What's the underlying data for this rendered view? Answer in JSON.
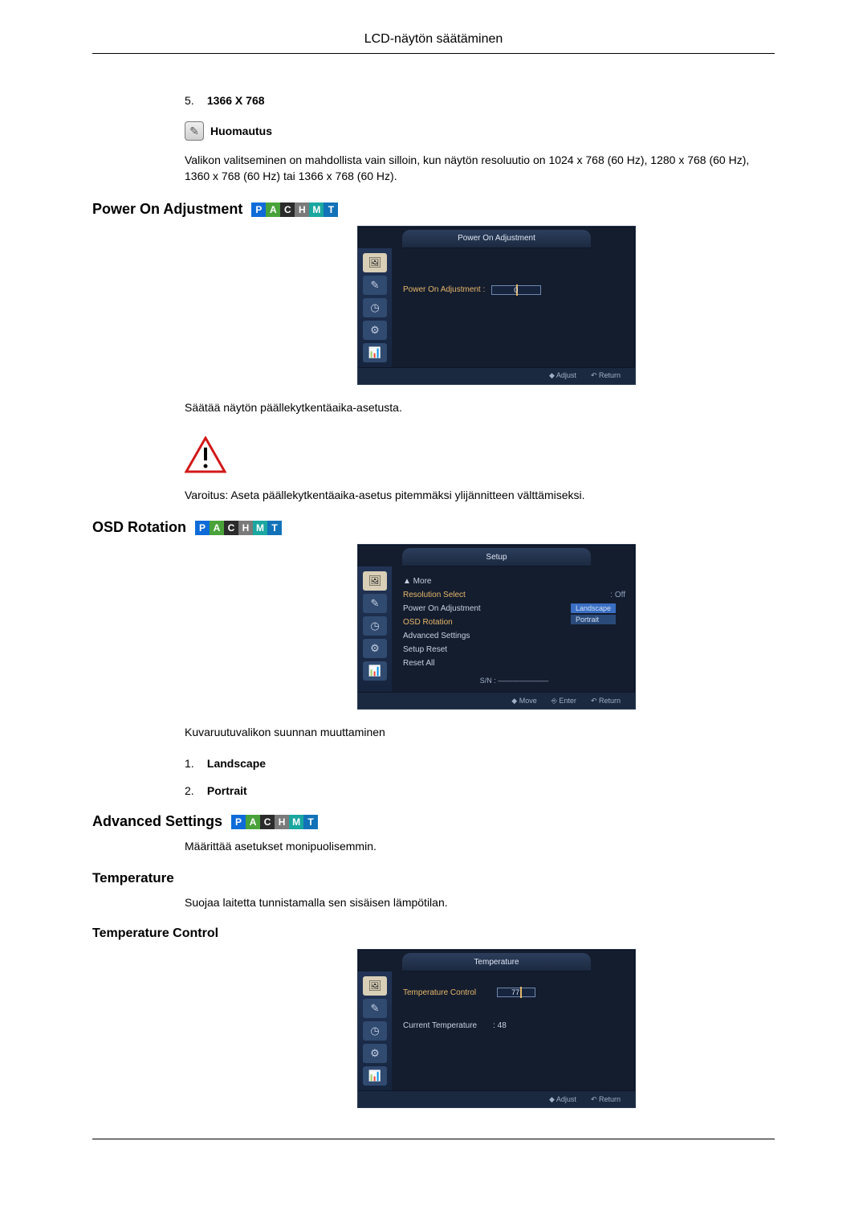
{
  "header": {
    "title": "LCD-näytön säätäminen"
  },
  "item5": {
    "num": "5.",
    "label": "1366 X 768"
  },
  "note": {
    "label": "Huomautus"
  },
  "para1": "Valikon valitseminen on mahdollista vain silloin, kun näytön resoluutio on 1024 x 768 (60 Hz), 1280 x 768 (60 Hz), 1360 x 768 (60 Hz) tai 1366 x 768 (60 Hz).",
  "pachmt": {
    "letters": [
      "P",
      "A",
      "C",
      "H",
      "M",
      "T"
    ],
    "colors": [
      "#0f6bd8",
      "#4aa33a",
      "#2b2b2b",
      "#7a7a7a",
      "#1aa7a0",
      "#1272b8"
    ]
  },
  "sections": {
    "power_on": {
      "title": "Power On Adjustment",
      "osd_title": "Power On Adjustment",
      "field_label": "Power On Adjustment :",
      "field_value": "0",
      "footer": {
        "adjust": "Adjust",
        "return": "Return"
      },
      "para": "Säätää näytön päällekytkentäaika-asetusta.",
      "warning": "Varoitus: Aseta päällekytkentäaika-asetus pitemmäksi ylijännitteen välttämiseksi."
    },
    "osd_rotation": {
      "title": "OSD Rotation",
      "osd_title": "Setup",
      "menu": {
        "more": "▲ More",
        "items": [
          {
            "label": "Resolution Select",
            "value": ": Off",
            "hl": true
          },
          {
            "label": "Power On Adjustment",
            "value": "",
            "hl": false
          },
          {
            "label": "OSD Rotation",
            "value": "",
            "hl": true
          },
          {
            "label": "Advanced Settings",
            "value": "",
            "hl": false
          },
          {
            "label": "Setup Reset",
            "value": "",
            "hl": false
          },
          {
            "label": "Reset All",
            "value": "",
            "hl": false
          }
        ],
        "sn": "S/N : ———————"
      },
      "options": {
        "opt1": "Landscape",
        "opt2": "Portrait"
      },
      "footer": {
        "move": "Move",
        "enter": "Enter",
        "return": "Return"
      },
      "para": "Kuvaruutuvalikon suunnan muuttaminen",
      "list": {
        "n1": "1.",
        "l1": "Landscape",
        "n2": "2.",
        "l2": "Portrait"
      }
    },
    "advanced": {
      "title": "Advanced Settings",
      "para": "Määrittää asetukset monipuolisemmin."
    },
    "temperature": {
      "title": "Temperature",
      "para": "Suojaa laitetta tunnistamalla sen sisäisen lämpötilan."
    },
    "temperature_control": {
      "title": "Temperature Control",
      "osd_title": "Temperature",
      "row1_label": "Temperature Control",
      "row1_value": "77",
      "row2_label": "Current Temperature",
      "row2_value": ": 48",
      "footer": {
        "adjust": "Adjust",
        "return": "Return"
      }
    }
  },
  "sidebar_icons": [
    "🖼",
    "✎",
    "◷",
    "⚙",
    "📊"
  ]
}
